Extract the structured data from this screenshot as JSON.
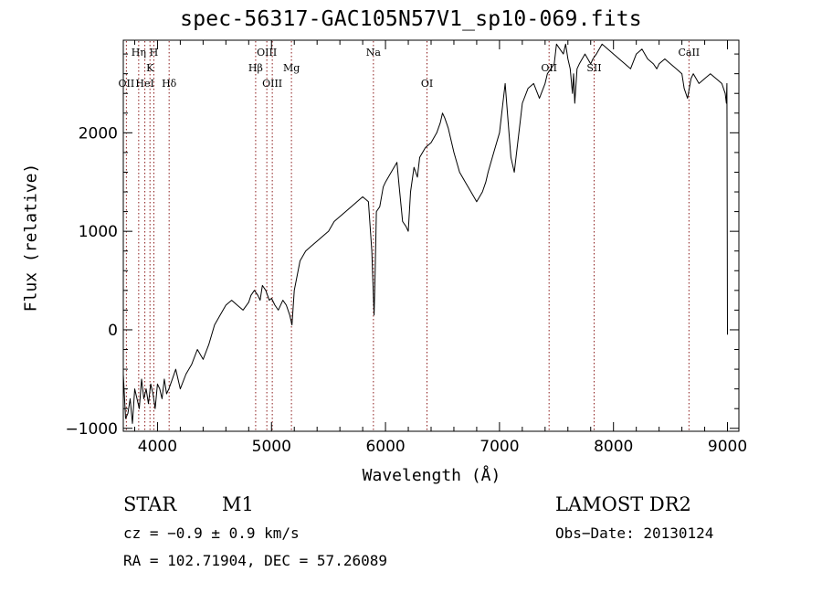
{
  "chart_data": {
    "type": "line",
    "title": "spec-56317-GAC105N57V1_sp10-069.fits",
    "xlabel": "Wavelength (Å)",
    "ylabel": "Flux (relative)",
    "xlim": [
      3700,
      9100
    ],
    "ylim": [
      -1030,
      2940
    ],
    "xticks": [
      4000,
      5000,
      6000,
      7000,
      8000,
      9000
    ],
    "yticks": [
      -1000,
      0,
      1000,
      2000
    ],
    "xtick_labels": [
      "4000",
      "5000",
      "6000",
      "7000",
      "8000",
      "9000"
    ],
    "ytick_labels": [
      "−1000",
      "0",
      "1000",
      "2000"
    ],
    "line_color": "#000000",
    "marker_color": "#8b1a1a",
    "series": [
      {
        "x": [
          3700,
          3720,
          3740,
          3760,
          3780,
          3800,
          3820,
          3840,
          3860,
          3880,
          3900,
          3920,
          3940,
          3960,
          3980,
          4000,
          4020,
          4040,
          4060,
          4080,
          4100,
          4130,
          4160,
          4200,
          4250,
          4300,
          4350,
          4400,
          4450,
          4500,
          4550,
          4600,
          4650,
          4700,
          4750,
          4800,
          4820,
          4850,
          4880,
          4900,
          4920,
          4950,
          4980,
          5000,
          5030,
          5060,
          5100,
          5130,
          5160,
          5180,
          5200,
          5250,
          5300,
          5350,
          5400,
          5450,
          5500,
          5550,
          5600,
          5650,
          5700,
          5750,
          5800,
          5850,
          5880,
          5900,
          5910,
          5920,
          5950,
          5980,
          6000,
          6050,
          6100,
          6120,
          6150,
          6180,
          6200,
          6220,
          6250,
          6280,
          6300,
          6350,
          6400,
          6450,
          6480,
          6500,
          6520,
          6550,
          6580,
          6600,
          6650,
          6700,
          6750,
          6800,
          6850,
          6880,
          6900,
          6950,
          7000,
          7030,
          7050,
          7070,
          7100,
          7130,
          7150,
          7180,
          7200,
          7250,
          7300,
          7350,
          7400,
          7420,
          7450,
          7480,
          7500,
          7530,
          7560,
          7580,
          7600,
          7620,
          7640,
          7650,
          7660,
          7680,
          7700,
          7750,
          7800,
          7820,
          7850,
          7900,
          7950,
          8000,
          8050,
          8100,
          8150,
          8200,
          8250,
          8300,
          8350,
          8380,
          8400,
          8450,
          8500,
          8550,
          8600,
          8620,
          8650,
          8680,
          8700,
          8750,
          8800,
          8850,
          8900,
          8950,
          8980,
          8990,
          8995,
          9000
        ],
        "y": [
          -450,
          -900,
          -850,
          -700,
          -950,
          -600,
          -700,
          -800,
          -500,
          -700,
          -600,
          -750,
          -550,
          -650,
          -800,
          -550,
          -600,
          -700,
          -500,
          -650,
          -600,
          -500,
          -400,
          -600,
          -450,
          -350,
          -200,
          -300,
          -150,
          50,
          150,
          250,
          300,
          250,
          200,
          280,
          350,
          400,
          350,
          300,
          450,
          400,
          300,
          320,
          250,
          200,
          300,
          250,
          150,
          50,
          400,
          700,
          800,
          850,
          900,
          950,
          1000,
          1100,
          1150,
          1200,
          1250,
          1300,
          1350,
          1300,
          800,
          150,
          600,
          1200,
          1250,
          1450,
          1500,
          1600,
          1700,
          1450,
          1100,
          1050,
          1000,
          1400,
          1650,
          1550,
          1750,
          1850,
          1900,
          2000,
          2100,
          2200,
          2150,
          2050,
          1900,
          1800,
          1600,
          1500,
          1400,
          1300,
          1400,
          1500,
          1600,
          1800,
          2000,
          2300,
          2500,
          2200,
          1750,
          1600,
          1800,
          2100,
          2300,
          2450,
          2500,
          2350,
          2500,
          2600,
          2650,
          2700,
          2900,
          2850,
          2800,
          2900,
          2750,
          2650,
          2400,
          2600,
          2300,
          2650,
          2700,
          2800,
          2700,
          2750,
          2800,
          2900,
          2850,
          2800,
          2750,
          2700,
          2650,
          2800,
          2850,
          2750,
          2700,
          2650,
          2700,
          2750,
          2700,
          2650,
          2600,
          2450,
          2350,
          2550,
          2600,
          2500,
          2550,
          2600,
          2550,
          2500,
          2400,
          2300,
          2500,
          -50
        ]
      }
    ],
    "lines": [
      {
        "label": "OII",
        "x": 3727,
        "row": 3
      },
      {
        "label": "Hη",
        "x": 3835,
        "row": 1
      },
      {
        "label": "HeI",
        "x": 3889,
        "row": 3
      },
      {
        "label": "K",
        "x": 3934,
        "row": 2
      },
      {
        "label": "H",
        "x": 3968,
        "row": 1
      },
      {
        "label": "Hδ",
        "x": 4102,
        "row": 3
      },
      {
        "label": "Hβ",
        "x": 4861,
        "row": 2
      },
      {
        "label": "OIII",
        "x": 4959,
        "row": 1
      },
      {
        "label": "OIII",
        "x": 5007,
        "row": 3
      },
      {
        "label": "Mg",
        "x": 5175,
        "row": 2
      },
      {
        "label": "Na",
        "x": 5894,
        "row": 1
      },
      {
        "label": "OI",
        "x": 6364,
        "row": 3
      },
      {
        "label": "OII",
        "x": 7435,
        "row": 2
      },
      {
        "label": "SII",
        "x": 7830,
        "row": 2
      },
      {
        "label": "CaII",
        "x": 8662,
        "row": 1
      }
    ]
  },
  "footer": {
    "object_type": "STAR",
    "subclass": "M1",
    "survey": "LAMOST DR2",
    "cz": "cz = −0.9 ± 0.9 km/s",
    "obs_date": "Obs−Date: 20130124",
    "radec": "RA = 102.71904, DEC =  57.26089"
  }
}
